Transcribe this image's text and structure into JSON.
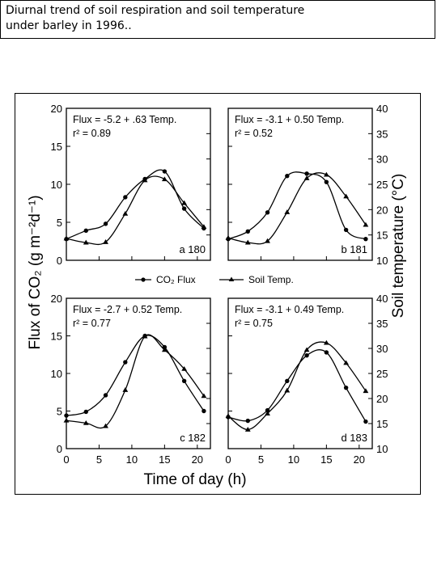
{
  "caption": {
    "line1": "Diurnal trend of soil respiration and soil temperature",
    "line2": "under barley in 1996.."
  },
  "axes": {
    "ylabel_left": "Flux of CO₂ (g m⁻²d⁻¹)",
    "ylabel_right": "Soil temperature (°C)",
    "xlabel": "Time of day (h)"
  },
  "legend": {
    "flux_label": "CO₂ Flux",
    "temp_label": "Soil Temp."
  },
  "colors": {
    "ink": "#000000",
    "background": "#ffffff"
  },
  "chart_data": [
    {
      "type": "line",
      "panel_label": "a 180",
      "equation": "Flux = -5.2 + .63 Temp.",
      "r2": "r² = 0.89",
      "xlim": [
        0,
        22
      ],
      "ylim_flux": [
        0,
        20
      ],
      "ylim_temp": [
        10,
        40
      ],
      "xticks": [
        0,
        5,
        10,
        15,
        20
      ],
      "yticks_flux": [
        0,
        5,
        10,
        15,
        20
      ],
      "yticks_temp": [
        10,
        15,
        20,
        25,
        30,
        35,
        40
      ],
      "series": [
        {
          "name": "CO₂ Flux",
          "axis": "left",
          "marker": "circle",
          "x": [
            0,
            3,
            6,
            9,
            12,
            15,
            18,
            21
          ],
          "y": [
            2.8,
            3.9,
            4.8,
            8.3,
            10.7,
            11.7,
            6.8,
            4.2
          ]
        },
        {
          "name": "Soil Temp.",
          "axis": "right",
          "marker": "triangle",
          "x": [
            0,
            3,
            6,
            9,
            12,
            15,
            18,
            21
          ],
          "y": [
            14.3,
            13.5,
            13.6,
            19.2,
            25.8,
            26,
            21.3,
            16.6
          ]
        }
      ]
    },
    {
      "type": "line",
      "panel_label": "b 181",
      "equation": "Flux = -3.1 + 0.50 Temp.",
      "r2": "r² = 0.52",
      "xlim": [
        0,
        22
      ],
      "ylim_flux": [
        0,
        20
      ],
      "ylim_temp": [
        10,
        40
      ],
      "xticks": [
        0,
        5,
        10,
        15,
        20
      ],
      "yticks_flux": [
        0,
        5,
        10,
        15,
        20
      ],
      "yticks_temp": [
        10,
        15,
        20,
        25,
        30,
        35,
        40
      ],
      "series": [
        {
          "name": "CO₂ Flux",
          "axis": "left",
          "marker": "circle",
          "x": [
            0,
            3,
            6,
            9,
            12,
            15,
            18,
            21
          ],
          "y": [
            2.8,
            3.8,
            6.3,
            11.1,
            11.4,
            10.3,
            4.0,
            2.8
          ]
        },
        {
          "name": "Soil Temp.",
          "axis": "right",
          "marker": "triangle",
          "x": [
            0,
            3,
            6,
            9,
            12,
            15,
            18,
            21
          ],
          "y": [
            14.4,
            13.5,
            13.8,
            19.5,
            26.2,
            26.9,
            22.6,
            17.0
          ]
        }
      ]
    },
    {
      "type": "line",
      "panel_label": "c 182",
      "equation": "Flux = -2.7 + 0.52 Temp.",
      "r2": "r² = 0.77",
      "xlim": [
        0,
        22
      ],
      "ylim_flux": [
        0,
        20
      ],
      "ylim_temp": [
        10,
        40
      ],
      "xticks": [
        0,
        5,
        10,
        15,
        20
      ],
      "yticks_flux": [
        0,
        5,
        10,
        15,
        20
      ],
      "yticks_temp": [
        10,
        15,
        20,
        25,
        30,
        35,
        40
      ],
      "series": [
        {
          "name": "CO₂ Flux",
          "axis": "left",
          "marker": "circle",
          "x": [
            0,
            3,
            6,
            9,
            12,
            15,
            18,
            21
          ],
          "y": [
            4.4,
            4.9,
            7.1,
            11.5,
            15.0,
            13.5,
            9.0,
            5.0
          ]
        },
        {
          "name": "Soil Temp.",
          "axis": "right",
          "marker": "triangle",
          "x": [
            0,
            3,
            6,
            9,
            12,
            15,
            18,
            21
          ],
          "y": [
            15.6,
            15.1,
            14.5,
            21.7,
            32.4,
            29.7,
            25.9,
            20.5
          ]
        }
      ]
    },
    {
      "type": "line",
      "panel_label": "d 183",
      "equation": "Flux = -3.1 + 0.49 Temp.",
      "r2": "r² = 0.75",
      "xlim": [
        0,
        22
      ],
      "ylim_flux": [
        0,
        20
      ],
      "ylim_temp": [
        10,
        40
      ],
      "xticks": [
        0,
        5,
        10,
        15,
        20
      ],
      "yticks_flux": [
        0,
        5,
        10,
        15,
        20
      ],
      "yticks_temp": [
        10,
        15,
        20,
        25,
        30,
        35,
        40
      ],
      "series": [
        {
          "name": "CO₂ Flux",
          "axis": "left",
          "marker": "circle",
          "x": [
            0,
            3,
            6,
            9,
            12,
            15,
            18,
            21
          ],
          "y": [
            4.2,
            3.7,
            5.1,
            9.0,
            12.4,
            12.8,
            8.1,
            3.6
          ]
        },
        {
          "name": "Soil Temp.",
          "axis": "right",
          "marker": "triangle",
          "x": [
            0,
            3,
            6,
            9,
            12,
            15,
            18,
            21
          ],
          "y": [
            16.5,
            13.8,
            17.0,
            21.6,
            29.7,
            31.1,
            27.1,
            21.5
          ]
        }
      ]
    }
  ]
}
